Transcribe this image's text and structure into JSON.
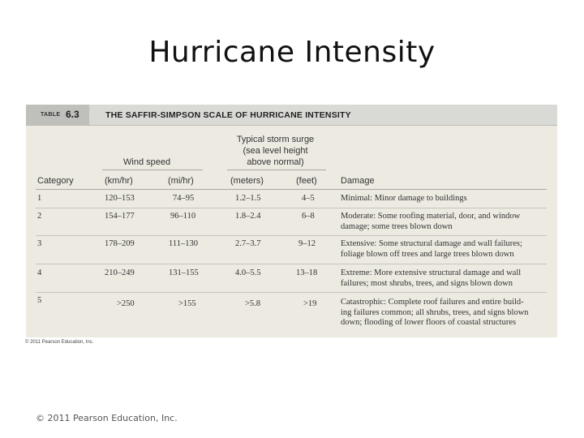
{
  "slide": {
    "title": "Hurricane Intensity",
    "footer": "© 2011 Pearson Education, Inc."
  },
  "table": {
    "tag_label": "TABLE",
    "tag_number": "6.3",
    "title": "THE SAFFIR-SIMPSON SCALE OF HURRICANE INTENSITY",
    "group_headers": {
      "wind_speed": "Wind speed",
      "surge_line1": "Typical storm surge",
      "surge_line2": "(sea level height",
      "surge_line3": "above normal)"
    },
    "columns": [
      "Category",
      "(km/hr)",
      "(mi/hr)",
      "(meters)",
      "(feet)",
      "Damage"
    ],
    "rows": [
      {
        "category": "1",
        "kmh": "120–153",
        "mph": "74–95",
        "meters": "1.2–1.5",
        "feet": "4–5",
        "damage": [
          "Minimal: Minor damage to buildings"
        ]
      },
      {
        "category": "2",
        "kmh": "154–177",
        "mph": "96–110",
        "meters": "1.8–2.4",
        "feet": "6–8",
        "damage": [
          "Moderate: Some roofing material, door, and window",
          "damage; some trees blown down"
        ]
      },
      {
        "category": "3",
        "kmh": "178–209",
        "mph": "111–130",
        "meters": "2.7–3.7",
        "feet": "9–12",
        "damage": [
          "Extensive: Some structural damage and wall failures;",
          "foliage blown off trees and large trees blown down"
        ]
      },
      {
        "category": "4",
        "kmh": "210–249",
        "mph": "131–155",
        "meters": "4.0–5.5",
        "feet": "13–18",
        "damage": [
          "Extreme: More extensive structural damage and wall",
          "failures; most shrubs, trees, and signs blown down"
        ]
      },
      {
        "category": "5",
        "kmh": ">250",
        "mph": ">155",
        "meters": ">5.8",
        "feet": ">19",
        "damage": [
          "Catastrophic: Complete roof failures and entire build-",
          "ing failures common; all shrubs, trees, and signs blown",
          "down; flooding of lower floors of coastal structures"
        ]
      }
    ],
    "copyright": "© 2011 Pearson Education, Inc."
  }
}
